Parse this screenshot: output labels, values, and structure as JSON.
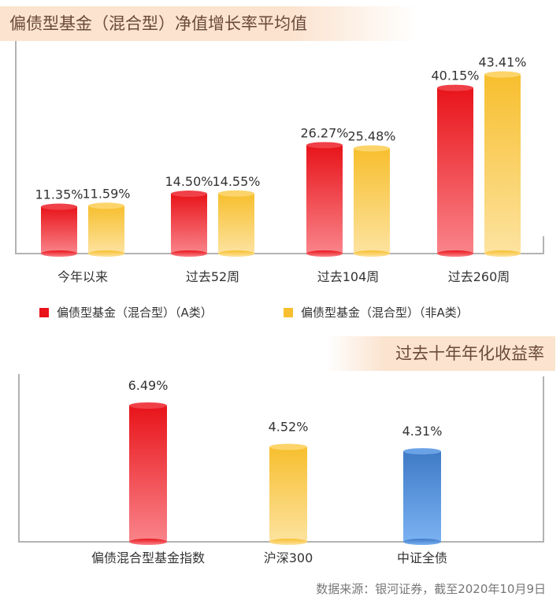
{
  "title_top": "偏债型基金（混合型）净值增长率平均值",
  "title_bottom": "过去十年年化收益率",
  "legend": {
    "series_a": "偏债型基金（混合型）（A类）",
    "series_b": "偏债型基金（混合型）（非A类）"
  },
  "colors": {
    "red": "#e8141a",
    "yellow": "#f7bf2e",
    "blue": "#4a86d0",
    "banner": "#fbe3cf",
    "banner_text": "#6b4a3a"
  },
  "source_note": "数据来源：银河证券，截至2020年10月9日",
  "chart_data": [
    {
      "type": "bar",
      "title": "偏债型基金（混合型）净值增长率平均值",
      "categories": [
        "今年以来",
        "过去52周",
        "过去104周",
        "过去260周"
      ],
      "series": [
        {
          "name": "偏债型基金（混合型）（A类）",
          "values": [
            11.35,
            14.5,
            26.27,
            40.15
          ],
          "labels": [
            "11.35%",
            "14.50%",
            "26.27%",
            "40.15%"
          ],
          "color": "red"
        },
        {
          "name": "偏债型基金（混合型）（非A类）",
          "values": [
            11.59,
            14.55,
            25.48,
            43.41
          ],
          "labels": [
            "11.59%",
            "14.55%",
            "25.48%",
            "43.41%"
          ],
          "color": "yellow"
        }
      ],
      "ylim": [
        0,
        50
      ],
      "legend_position": "bottom",
      "grid": false
    },
    {
      "type": "bar",
      "title": "过去十年年化收益率",
      "categories": [
        "偏债混合型基金指数",
        "沪深300",
        "中证全债"
      ],
      "values": [
        6.49,
        4.52,
        4.31
      ],
      "labels": [
        "6.49%",
        "4.52%",
        "4.31%"
      ],
      "colors": [
        "red",
        "yellow",
        "blue"
      ],
      "ylim": [
        0,
        7.5
      ],
      "grid": false
    }
  ]
}
